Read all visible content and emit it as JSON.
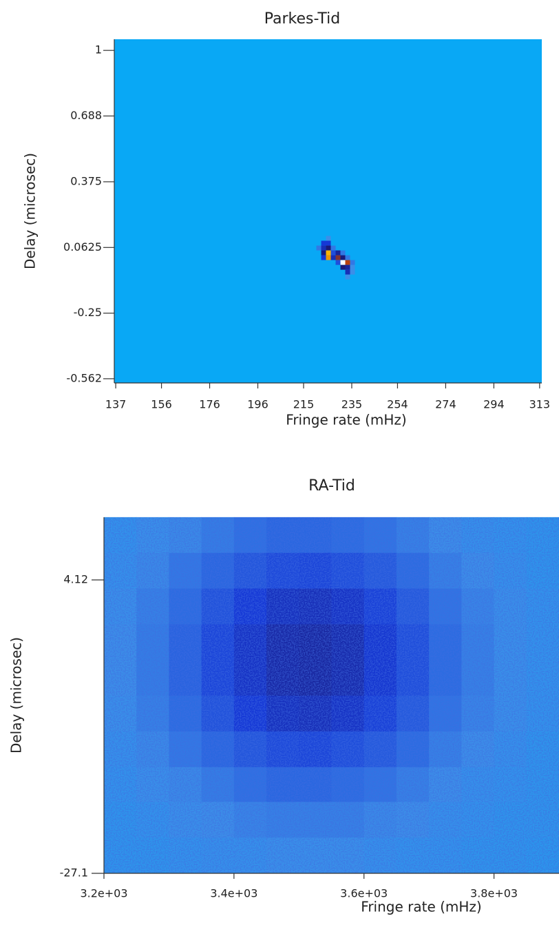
{
  "chart_data": [
    {
      "type": "heatmap",
      "title": "Parkes-Tid",
      "x_label": "Fringe rate (mHz)",
      "y_label": "Delay (microsec)",
      "xlim": [
        136.4,
        313.9
      ],
      "xticks": [
        137,
        156,
        176,
        196,
        215,
        235,
        254,
        274,
        294,
        313
      ],
      "ylim": [
        -0.582,
        1.053
      ],
      "yticks": [
        1,
        0.688,
        0.375,
        0.0625,
        -0.25,
        -0.562
      ],
      "colormap": [
        {
          "value": 0,
          "color": "#09a8f5"
        },
        {
          "value": 0.15,
          "color": "#3c8ee8"
        },
        {
          "value": 0.35,
          "color": "#1538d6"
        },
        {
          "value": 0.5,
          "color": "#1a1a7a"
        },
        {
          "value": 0.65,
          "color": "#b8400f"
        },
        {
          "value": 0.85,
          "color": "#ffb400"
        },
        {
          "value": 1,
          "color": "#ffffff"
        }
      ],
      "x": [
        223.3,
        225.3,
        221.3,
        223.3,
        225.3,
        227.3,
        223.3,
        225.3,
        227.3,
        229.3,
        231.3,
        223.3,
        225.3,
        227.3,
        229.3,
        231.3,
        233.3,
        229.3,
        231.3,
        233.3,
        235.3,
        231.3,
        233.3,
        235.3,
        233.3,
        235.3,
        233.3,
        225.3
      ],
      "y": [
        0.083,
        0.083,
        0.06,
        0.06,
        0.06,
        0.06,
        0.037,
        0.037,
        0.037,
        0.037,
        0.037,
        0.014,
        0.014,
        0.014,
        0.014,
        0.014,
        0.014,
        -0.009,
        -0.009,
        -0.009,
        -0.009,
        -0.032,
        -0.032,
        -0.032,
        -0.055,
        -0.055,
        -0.078,
        0.106
      ],
      "values": [
        0.35,
        0.35,
        0.2,
        0.4,
        0.5,
        0.2,
        0.5,
        0.85,
        0.3,
        0.45,
        0.2,
        0.35,
        0.8,
        0.4,
        0.6,
        0.5,
        0.2,
        0.3,
        1,
        0.65,
        0.2,
        0.5,
        0.45,
        0.15,
        0.4,
        0.15,
        0.15,
        0.15
      ]
    },
    {
      "type": "heatmap",
      "title": "RA-Tid",
      "x_label": "Fringe rate (mHz)",
      "y_label": "Delay (microsec)",
      "xlim": [
        3200,
        3900
      ],
      "xticks": [
        {
          "value": 3200,
          "label": "3.2e+03"
        },
        {
          "value": 3400,
          "label": "3.4e+03"
        },
        {
          "value": 3600,
          "label": "3.6e+03"
        },
        {
          "value": 3800,
          "label": "3.8e+03"
        }
      ],
      "ylim": [
        -27.1,
        10.79
      ],
      "yticks": [
        4.12,
        -27.1
      ],
      "colormap": [
        {
          "value": 0,
          "color": "#09a8f5"
        },
        {
          "value": 0.15,
          "color": "#3c8ee8"
        },
        {
          "value": 0.35,
          "color": "#1538d6"
        },
        {
          "value": 0.5,
          "color": "#1a1a7a"
        },
        {
          "value": 0.65,
          "color": "#b8400f"
        },
        {
          "value": 0.85,
          "color": "#ffb400"
        },
        {
          "value": 1,
          "color": "#ffffff"
        }
      ],
      "x": [
        3225,
        3275,
        3325,
        3375,
        3425,
        3475,
        3525,
        3575,
        3625,
        3675,
        3725,
        3775,
        3825,
        3875
      ],
      "y": [
        8.9,
        5.1,
        1.3,
        -2.5,
        -6.3,
        -10.1,
        -13.9,
        -17.7,
        -21.4,
        -25.2
      ],
      "z": [
        [
          0.12,
          0.14,
          0.16,
          0.19,
          0.22,
          0.24,
          0.24,
          0.23,
          0.21,
          0.18,
          0.15,
          0.13,
          0.12,
          0.11
        ],
        [
          0.13,
          0.16,
          0.2,
          0.24,
          0.28,
          0.31,
          0.32,
          0.3,
          0.27,
          0.23,
          0.18,
          0.15,
          0.13,
          0.11
        ],
        [
          0.14,
          0.18,
          0.23,
          0.29,
          0.35,
          0.39,
          0.4,
          0.38,
          0.33,
          0.27,
          0.21,
          0.17,
          0.14,
          0.12
        ],
        [
          0.15,
          0.19,
          0.25,
          0.32,
          0.38,
          0.43,
          0.44,
          0.42,
          0.36,
          0.3,
          0.23,
          0.18,
          0.14,
          0.12
        ],
        [
          0.15,
          0.19,
          0.25,
          0.32,
          0.38,
          0.43,
          0.44,
          0.42,
          0.36,
          0.3,
          0.23,
          0.18,
          0.14,
          0.12
        ],
        [
          0.14,
          0.18,
          0.23,
          0.29,
          0.35,
          0.39,
          0.4,
          0.38,
          0.33,
          0.27,
          0.21,
          0.17,
          0.14,
          0.12
        ],
        [
          0.13,
          0.16,
          0.2,
          0.24,
          0.28,
          0.31,
          0.32,
          0.3,
          0.27,
          0.23,
          0.18,
          0.15,
          0.13,
          0.11
        ],
        [
          0.12,
          0.14,
          0.16,
          0.19,
          0.22,
          0.24,
          0.24,
          0.23,
          0.21,
          0.18,
          0.15,
          0.13,
          0.12,
          0.11
        ],
        [
          0.11,
          0.12,
          0.14,
          0.15,
          0.17,
          0.18,
          0.18,
          0.18,
          0.16,
          0.15,
          0.13,
          0.12,
          0.11,
          0.11
        ],
        [
          0.11,
          0.11,
          0.12,
          0.13,
          0.13,
          0.14,
          0.14,
          0.14,
          0.13,
          0.12,
          0.12,
          0.11,
          0.11,
          0.1
        ]
      ]
    }
  ]
}
